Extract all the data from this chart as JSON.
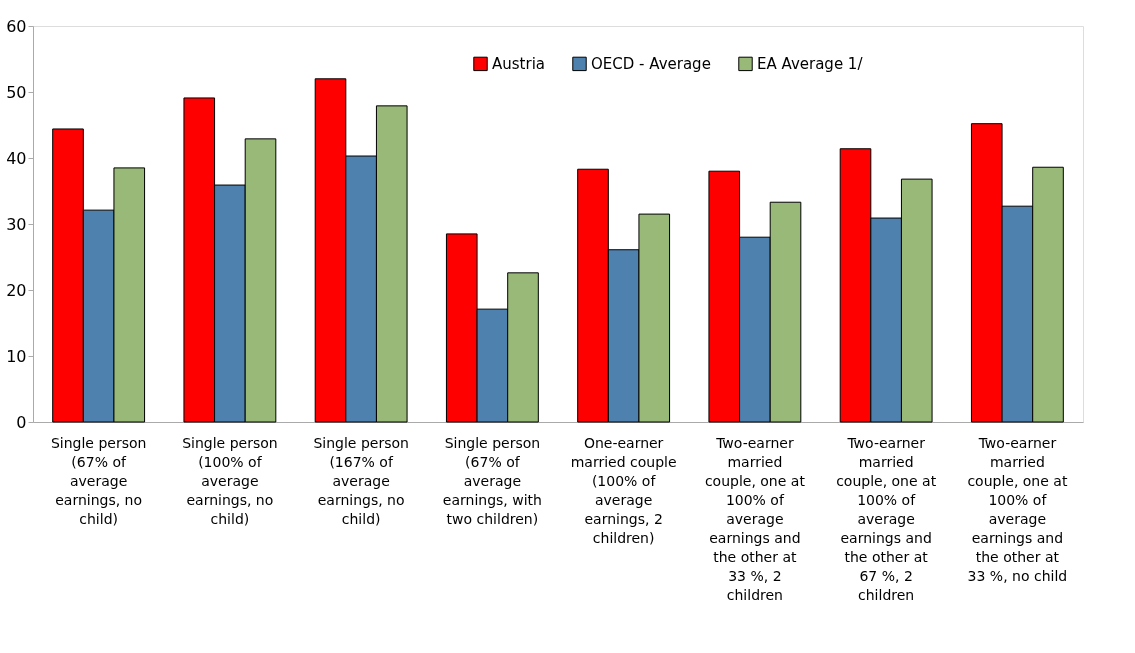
{
  "chart_data": {
    "type": "bar",
    "categories": [
      "Single person (67% of average earnings, no child)",
      "Single person (100% of average earnings, no child)",
      "Single person (167% of average earnings, no child)",
      "Single person (67% of average earnings, with two children)",
      "One-earner married couple (100% of average earnings, 2 children)",
      "Two-earner married couple, one at 100% of average earnings and the other at 33 %, 2 children",
      "Two-earner married couple, one at 100% of average earnings and the other at 67 %, 2 children",
      "Two-earner married couple, one at 100% of average earnings and the other at 33 %, no child"
    ],
    "series": [
      {
        "name": "Austria",
        "color": "#ff0000",
        "values": [
          44.4,
          49.1,
          52.0,
          28.5,
          38.3,
          38.0,
          41.4,
          45.2
        ]
      },
      {
        "name": "OECD - Average",
        "color": "#4f81ae",
        "values": [
          32.1,
          35.9,
          40.3,
          17.1,
          26.1,
          28.0,
          30.9,
          32.7
        ]
      },
      {
        "name": "EA Average 1/",
        "color": "#98b977",
        "values": [
          38.5,
          42.9,
          47.9,
          22.6,
          31.5,
          33.3,
          36.8,
          38.6
        ]
      }
    ],
    "ylim": [
      0,
      60
    ],
    "yticks": [
      0,
      10,
      20,
      30,
      40,
      50,
      60
    ],
    "grid": false,
    "legend": "top"
  }
}
